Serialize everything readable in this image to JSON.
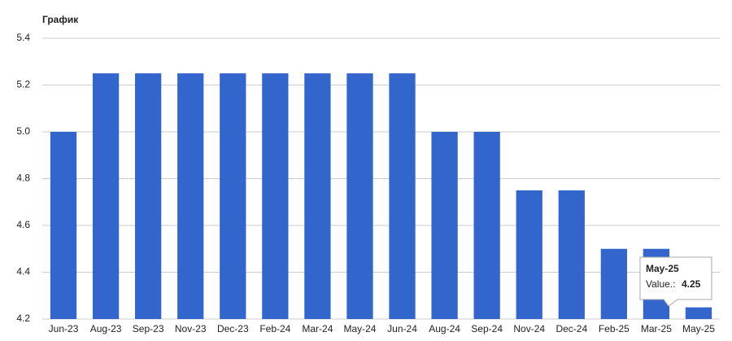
{
  "chart_data": {
    "type": "bar",
    "title": "График",
    "categories": [
      "Jun-23",
      "Aug-23",
      "Sep-23",
      "Nov-23",
      "Dec-23",
      "Feb-24",
      "Mar-24",
      "May-24",
      "Jun-24",
      "Aug-24",
      "Sep-24",
      "Nov-24",
      "Dec-24",
      "Feb-25",
      "Mar-25",
      "May-25"
    ],
    "values": [
      5.0,
      5.25,
      5.25,
      5.25,
      5.25,
      5.25,
      5.25,
      5.25,
      5.25,
      5.0,
      5.0,
      4.75,
      4.75,
      4.5,
      4.5,
      4.25
    ],
    "color": "#3366cc",
    "ylim": [
      4.2,
      5.4
    ],
    "yticks": [
      4.2,
      4.4,
      4.6,
      4.8,
      {
        "value": 5,
        "label": "5.0"
      },
      5.2,
      5.4
    ],
    "grid": true,
    "tooltip_label": "Value.:"
  }
}
